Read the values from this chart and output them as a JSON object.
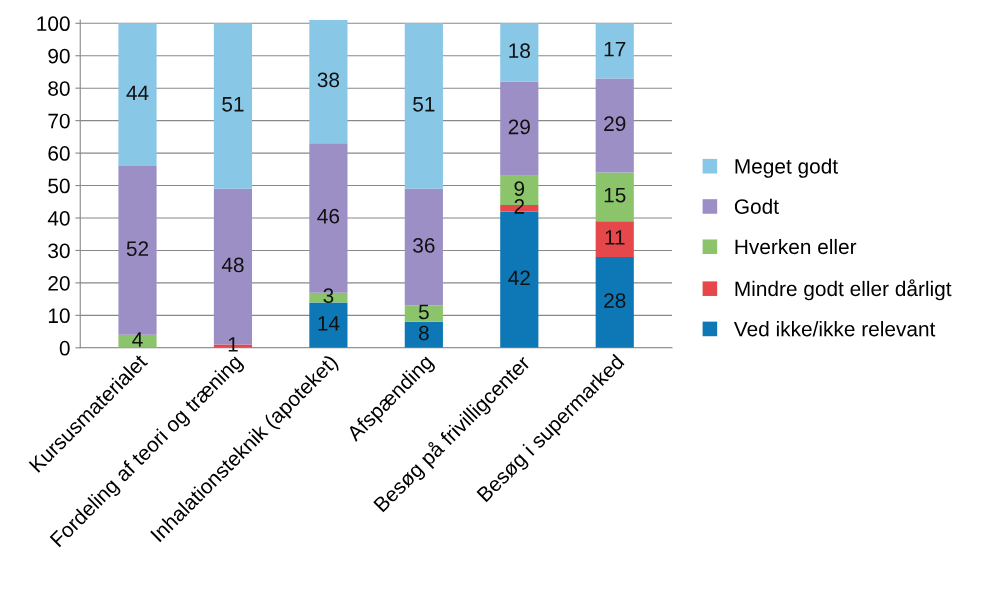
{
  "chart_data": {
    "type": "bar",
    "stacked": true,
    "categories": [
      "Kursusmaterialet",
      "Fordeling af teori og træning",
      "Inhalationsteknik (apoteket)",
      "Afspænding",
      "Besøg på frivilligcenter",
      "Besøg i supermarked"
    ],
    "series": [
      {
        "name": "Ved ikke/ikke relevant",
        "color": "#0e78b6",
        "values": [
          null,
          null,
          14,
          8,
          42,
          28
        ],
        "value_labels": [
          null,
          null,
          "14",
          "8",
          "42",
          "28"
        ]
      },
      {
        "name": "Mindre godt eller dårligt",
        "color": "#e5474b",
        "values": [
          null,
          1,
          null,
          null,
          2,
          11
        ],
        "value_labels": [
          null,
          "1",
          null,
          null,
          "2",
          "11"
        ]
      },
      {
        "name": "Hverken eller",
        "color": "#8cc46c",
        "values": [
          4,
          null,
          3,
          5,
          9,
          15
        ],
        "value_labels": [
          "4",
          null,
          "3",
          "5",
          "9",
          "15"
        ]
      },
      {
        "name": "Godt",
        "color": "#9c8fc6",
        "values": [
          52,
          48,
          46,
          36,
          29,
          29
        ],
        "value_labels": [
          "52",
          "48",
          "46",
          "36",
          "29",
          "29"
        ]
      },
      {
        "name": "Meget godt",
        "color": "#89c7e7",
        "values": [
          44,
          51,
          38,
          51,
          18,
          17
        ],
        "value_labels": [
          "44",
          "51",
          "38",
          "51",
          "18",
          "17"
        ]
      }
    ],
    "ylim": [
      0,
      101
    ],
    "yticks": [
      0,
      10,
      20,
      30,
      40,
      50,
      60,
      70,
      80,
      90,
      100
    ],
    "grid": "y",
    "legend": "right"
  }
}
